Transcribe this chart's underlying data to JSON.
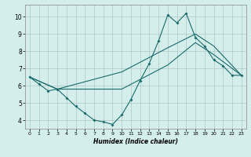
{
  "xlabel": "Humidex (Indice chaleur)",
  "bg_color": "#d4eeeb",
  "line_color": "#1a6b6b",
  "grid_color": "#b0c8c8",
  "xlim": [
    -0.5,
    23.5
  ],
  "ylim": [
    3.5,
    10.7
  ],
  "xticks": [
    0,
    1,
    2,
    3,
    4,
    5,
    6,
    7,
    8,
    9,
    10,
    11,
    12,
    13,
    14,
    15,
    16,
    17,
    18,
    19,
    20,
    21,
    22,
    23
  ],
  "yticks": [
    4,
    5,
    6,
    7,
    8,
    9,
    10
  ],
  "line1_x": [
    0,
    1,
    2,
    3,
    4,
    5,
    6,
    7,
    8,
    9,
    10,
    11,
    12,
    13,
    14,
    15,
    16,
    17,
    18,
    19,
    20,
    21,
    22,
    23
  ],
  "line1_y": [
    6.5,
    6.1,
    5.7,
    5.8,
    5.3,
    4.8,
    4.4,
    4.0,
    3.9,
    3.75,
    4.3,
    5.2,
    6.3,
    7.3,
    8.6,
    10.1,
    9.65,
    10.2,
    8.8,
    8.3,
    7.5,
    7.15,
    6.6,
    6.6
  ],
  "line2_x": [
    0,
    3,
    10,
    15,
    18,
    20,
    23
  ],
  "line2_y": [
    6.5,
    5.8,
    6.8,
    8.2,
    9.0,
    8.3,
    6.6
  ],
  "line3_x": [
    0,
    3,
    10,
    15,
    18,
    20,
    23
  ],
  "line3_y": [
    6.5,
    5.8,
    5.8,
    7.2,
    8.5,
    7.8,
    6.6
  ]
}
